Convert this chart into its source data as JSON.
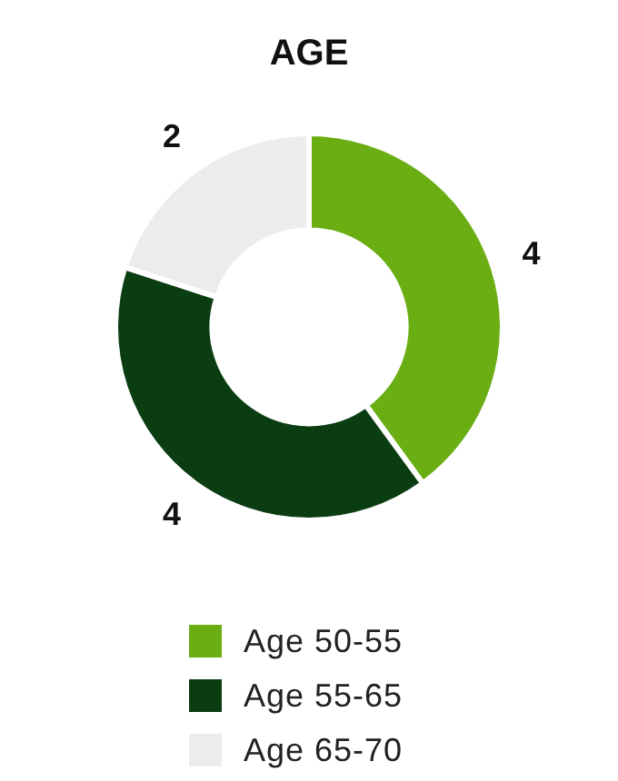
{
  "chart_data": {
    "type": "donut",
    "title": "AGE",
    "categories": [
      "Age 50-55",
      "Age 55-65",
      "Age 65-70"
    ],
    "values": [
      4,
      4,
      2
    ],
    "colors": [
      "#6aae14",
      "#0b3d13",
      "#ececec"
    ],
    "data_labels": true,
    "legend": "bottom"
  }
}
